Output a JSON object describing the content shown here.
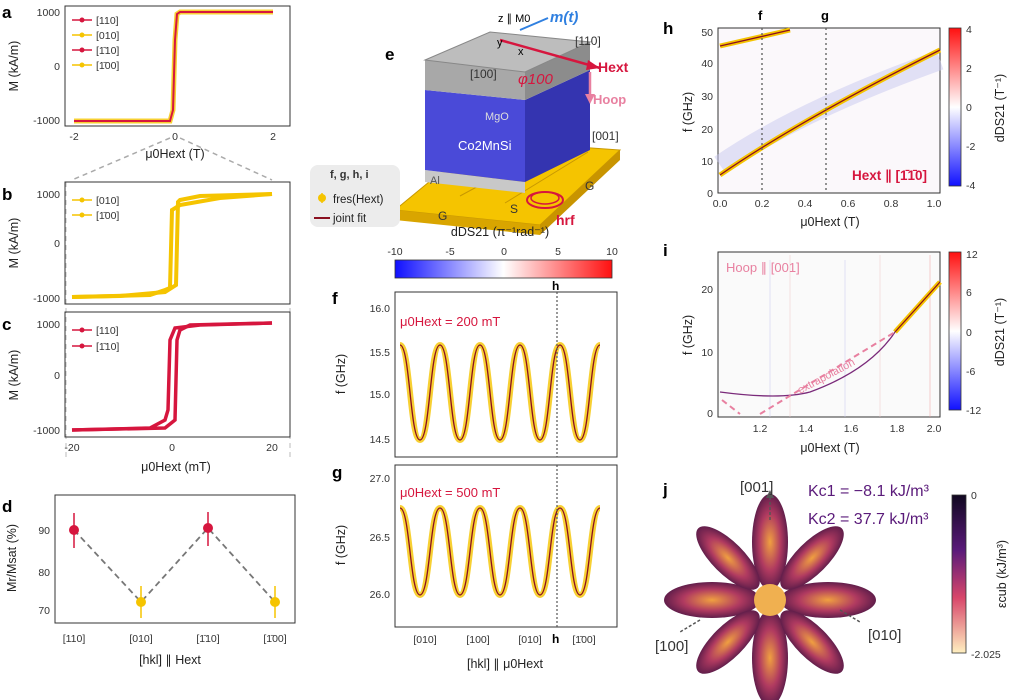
{
  "figure": {
    "panels": {
      "a": {
        "label": "a",
        "ylabel": "M (kA/m)",
        "xlabel": "μ0Hext (T)",
        "xticks": [
          "-2",
          "0",
          "2"
        ],
        "yticks": [
          "1000",
          "0",
          "-1000"
        ],
        "legend": [
          "[110]",
          "[010]",
          "[1̄10]",
          "[1̄00]"
        ]
      },
      "b": {
        "label": "b",
        "ylabel": "M (kA/m)",
        "yticks": [
          "1000",
          "0",
          "-1000"
        ],
        "legend": [
          "[010]",
          "[1̄00]"
        ]
      },
      "c": {
        "label": "c",
        "ylabel": "M (kA/m)",
        "xlabel": "μ0Hext (mT)",
        "xticks": [
          "-20",
          "0",
          "20"
        ],
        "yticks": [
          "1000",
          "0",
          "-1000"
        ],
        "legend": [
          "[110]",
          "[1̄10]"
        ]
      },
      "d": {
        "label": "d",
        "ylabel": "Mr/Msat (%)",
        "xlabel": "[hkl] ∥ Hext",
        "xticks": [
          "[110]",
          "[010]",
          "[1̄10]",
          "[1̄00]"
        ],
        "yticks": [
          "90",
          "80",
          "70"
        ]
      },
      "e": {
        "label": "e",
        "layers": [
          "MgO",
          "Co2MnSi",
          "Al"
        ],
        "directions": [
          "[110]",
          "[100]",
          "[001]"
        ],
        "vectors": [
          "m(t)",
          "Hext",
          "Hoop",
          "hrf"
        ],
        "angle": "φ100",
        "axes": [
          "z ∥ M0",
          "y",
          "x"
        ],
        "electrodes": [
          "G",
          "S",
          "G"
        ]
      },
      "legend_fghi": {
        "title": "f, g, h, i",
        "entries": [
          "fres(Hext)",
          "joint fit"
        ]
      },
      "colorbar_fg": {
        "title": "dDS21 (π⁻¹rad⁻¹)",
        "ticks": [
          "-10",
          "-5",
          "0",
          "5",
          "10"
        ]
      },
      "f": {
        "label": "f",
        "annotation": "μ0Hext = 200 mT",
        "ylabel": "f (GHz)",
        "yticks": [
          "16.0",
          "15.5",
          "15.0",
          "14.5"
        ],
        "marker": "h"
      },
      "g": {
        "label": "g",
        "annotation": "μ0Hext = 500 mT",
        "ylabel": "f (GHz)",
        "yticks": [
          "27.0",
          "26.5",
          "26.0"
        ],
        "xticks": [
          "[010]",
          "[100]",
          "[010]",
          "[1̄00]"
        ],
        "xlabel": "[hkl] ∥ μ0Hext",
        "marker": "h"
      },
      "h": {
        "label": "h",
        "ylabel": "f (GHz)",
        "xlabel": "μ0Hext (T)",
        "xticks": [
          "0.0",
          "0.2",
          "0.4",
          "0.6",
          "0.8",
          "1.0"
        ],
        "yticks": [
          "50",
          "40",
          "30",
          "20",
          "10",
          "0"
        ],
        "annotation": "Hext ∥ [1̄1̄0]",
        "markers": [
          "f",
          "g"
        ],
        "colorbar_ticks": [
          "4",
          "2",
          "0",
          "-2",
          "-4"
        ],
        "colorbar_label": "dDS21 (T⁻¹)"
      },
      "i": {
        "label": "i",
        "ylabel": "f (GHz)",
        "xlabel": "μ0Hext (T)",
        "xticks": [
          "1.2",
          "1.4",
          "1.6",
          "1.8",
          "2.0"
        ],
        "yticks": [
          "20",
          "10",
          "0"
        ],
        "annotation": "Hoop ∥ [001]",
        "extrapolation": "extrapolation",
        "colorbar_ticks": [
          "12",
          "6",
          "0",
          "-6",
          "-12"
        ],
        "colorbar_label": "dDS21 (T⁻¹)"
      },
      "j": {
        "label": "j",
        "Kc1": "Kc1 = −8.1 kJ/m³",
        "Kc2": "Kc2 = 37.7 kJ/m³",
        "axes": [
          "[001]",
          "[100]",
          "[010]"
        ],
        "colorbar_ticks": [
          "0",
          "-2.025"
        ],
        "colorbar_label": "εcub (kJ/m³)"
      }
    },
    "colors": {
      "red": "#d6163e",
      "yellow": "#f5c400",
      "grey": "#999999"
    }
  }
}
